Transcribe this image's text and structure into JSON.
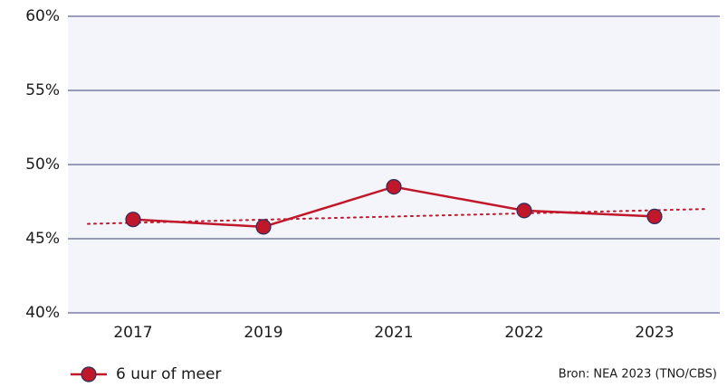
{
  "chart_data": {
    "type": "line",
    "categories": [
      "2017",
      "2019",
      "2021",
      "2022",
      "2023"
    ],
    "series": [
      {
        "name": "6 uur of meer",
        "color": "#c0182a",
        "values": [
          46.3,
          45.8,
          48.5,
          46.9,
          46.5
        ]
      }
    ],
    "trendline": {
      "start": 46.0,
      "end": 47.0,
      "color": "#c0182a",
      "style": "dotted"
    },
    "ylim": [
      40,
      60
    ],
    "yticks": [
      {
        "value": 40,
        "label": "40%"
      },
      {
        "value": 45,
        "label": "45%"
      },
      {
        "value": 50,
        "label": "50%"
      },
      {
        "value": 55,
        "label": "55%"
      },
      {
        "value": 60,
        "label": "60%"
      }
    ],
    "grid": true,
    "legend": "bottom-left",
    "source": "Bron: NEA 2023 (TNO/CBS)"
  }
}
